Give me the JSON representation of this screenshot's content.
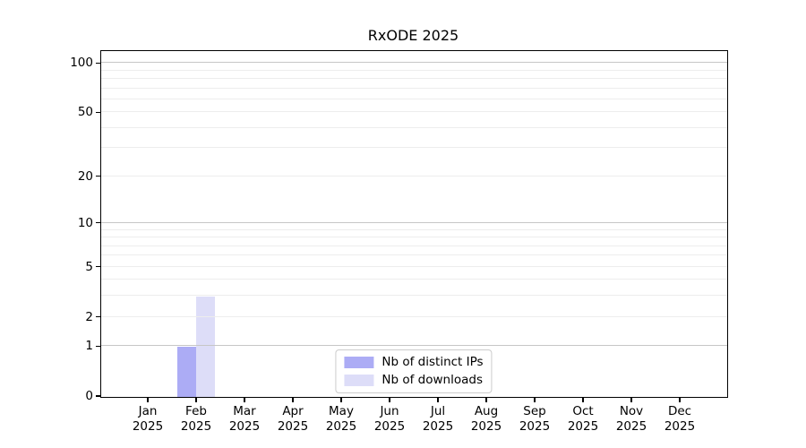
{
  "page": {
    "background": "#ffffff"
  },
  "chart_data": {
    "type": "bar",
    "title": "RxODE 2025",
    "x": {
      "months": [
        "Jan",
        "Feb",
        "Mar",
        "Apr",
        "May",
        "Jun",
        "Jul",
        "Aug",
        "Sep",
        "Oct",
        "Nov",
        "Dec"
      ],
      "year_label": "2025"
    },
    "series": [
      {
        "name": "Nb of distinct IPs",
        "color": "#acacf5",
        "values": [
          0,
          1,
          0,
          0,
          0,
          0,
          0,
          0,
          0,
          0,
          0,
          0
        ]
      },
      {
        "name": "Nb of downloads",
        "color": "#ddddf8",
        "values": [
          0,
          3,
          0,
          0,
          0,
          0,
          0,
          0,
          0,
          0,
          0,
          0
        ]
      }
    ],
    "y_axis": {
      "scale": "log1p",
      "tick_values": [
        0,
        1,
        2,
        5,
        10,
        20,
        50,
        100
      ],
      "major_gridlines": [
        1,
        10,
        100
      ],
      "minor_gridlines": [
        2,
        3,
        4,
        5,
        6,
        7,
        8,
        9,
        20,
        30,
        40,
        50,
        60,
        70,
        80,
        90
      ],
      "max_value": 118
    },
    "legend": {
      "position": "lower center",
      "entries": [
        "Nb of distinct IPs",
        "Nb of downloads"
      ]
    },
    "colors": {
      "axis": "#000000",
      "grid_major": "#c6c6c6",
      "grid_minor": "#ededed",
      "legend_border": "#cccccc",
      "text": "#000000"
    }
  }
}
